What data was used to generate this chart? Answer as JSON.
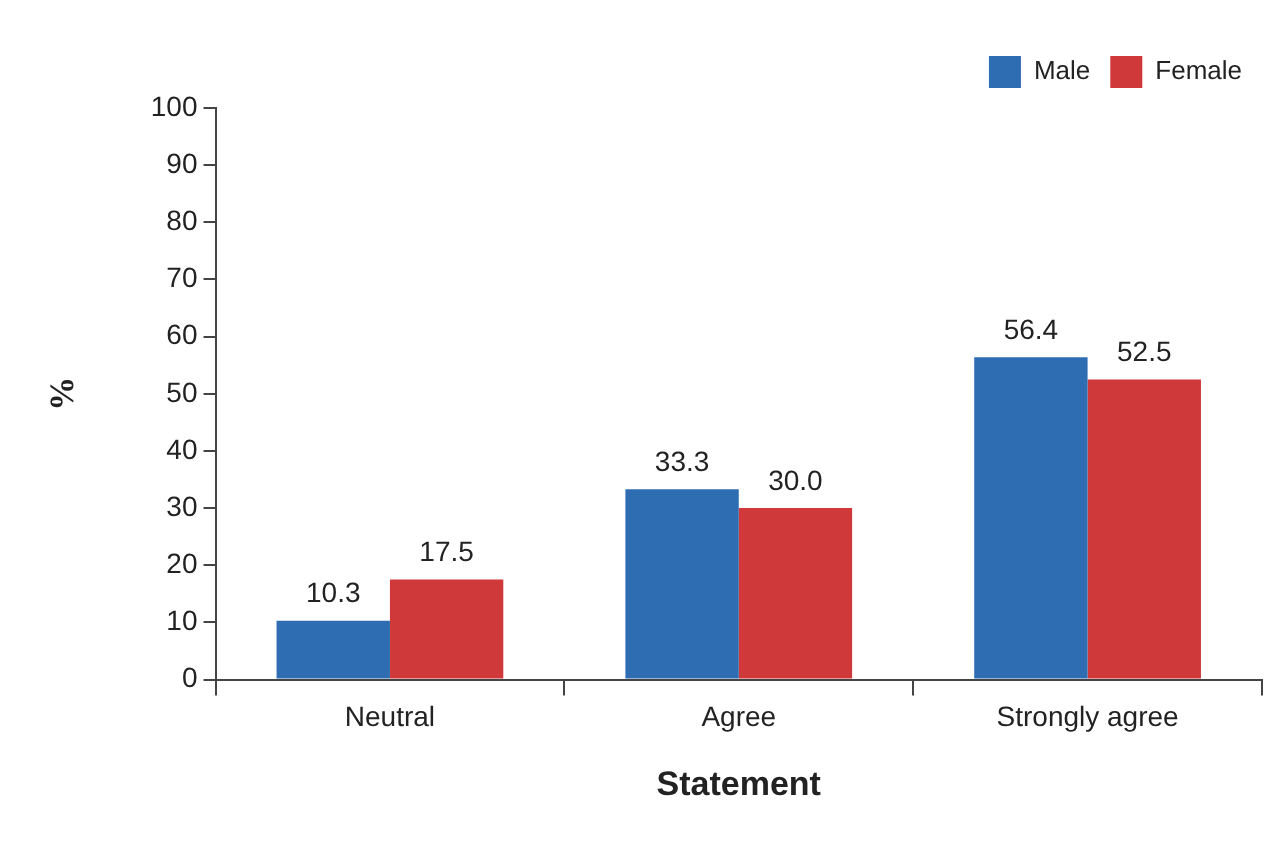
{
  "chart_data": {
    "type": "bar",
    "xlabel": "Statement",
    "ylabel": "%",
    "categories": [
      "Neutral",
      "Agree",
      "Strongly agree"
    ],
    "series": [
      {
        "name": "Male",
        "color": "#2f6db3",
        "values": [
          10.3,
          33.3,
          56.4
        ]
      },
      {
        "name": "Female",
        "color": "#d0393a",
        "values": [
          17.5,
          30.0,
          52.5
        ]
      }
    ],
    "value_labels": [
      [
        "10.3",
        "33.3",
        "56.4"
      ],
      [
        "17.5",
        "30.0",
        "52.5"
      ]
    ],
    "ylim": [
      0,
      100
    ],
    "yticks": [
      0,
      10,
      20,
      30,
      40,
      50,
      60,
      70,
      80,
      90,
      100
    ],
    "grid": false,
    "legend": "top right"
  }
}
